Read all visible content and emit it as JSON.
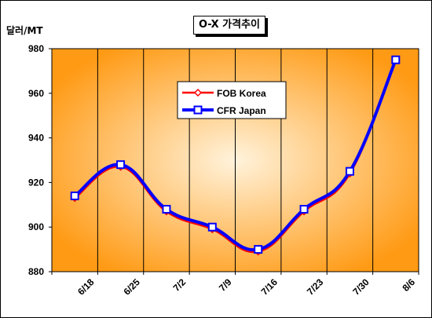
{
  "chart_data": {
    "type": "line",
    "title": "O-X 가격추이",
    "ylabel": "달러/MT",
    "xlabel": "",
    "categories": [
      "6/18",
      "6/25",
      "7/2",
      "7/9",
      "7/16",
      "7/23",
      "7/30",
      "8/6"
    ],
    "ylim": [
      880,
      980
    ],
    "yticks": [
      880,
      900,
      920,
      940,
      960,
      980
    ],
    "grid": "vertical",
    "legend_position": "upper-center",
    "series": [
      {
        "name": "FOB Korea",
        "color": "#ff0000",
        "marker": "diamond",
        "values": [
          913,
          927,
          907,
          899,
          889,
          907,
          924,
          975
        ]
      },
      {
        "name": "CFR Japan",
        "color": "#0000ff",
        "marker": "square",
        "values": [
          914,
          928,
          908,
          900,
          890,
          908,
          925,
          975
        ]
      }
    ],
    "background_colors": {
      "center": "#fff3dc",
      "edge": "#ff9a14"
    }
  }
}
